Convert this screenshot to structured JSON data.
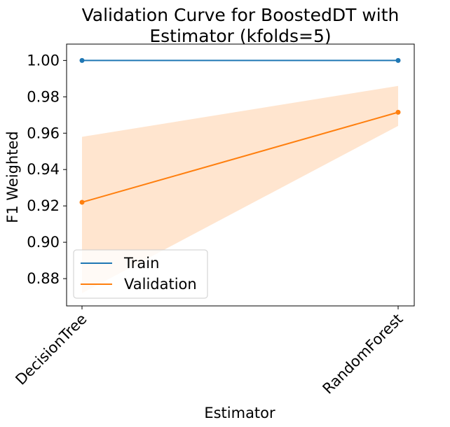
{
  "chart_data": {
    "type": "line",
    "title": [
      "Validation Curve for BoostedDT with",
      "Estimator (kfolds=5)"
    ],
    "xlabel": "Estimator",
    "ylabel": "F1 Weighted",
    "categories": [
      "DecisionTree",
      "RandomForest"
    ],
    "ylim": [
      0.865,
      1.009
    ],
    "yticks": [
      0.88,
      0.9,
      0.92,
      0.94,
      0.96,
      0.98,
      1.0
    ],
    "ytick_labels": [
      "0.88",
      "0.90",
      "0.92",
      "0.94",
      "0.96",
      "0.98",
      "1.00"
    ],
    "grid": false,
    "legend_position": "lower-left",
    "series": [
      {
        "name": "Train",
        "color": "#1f77b4",
        "values": [
          1.0,
          1.0
        ],
        "band_lower": [
          1.0,
          1.0
        ],
        "band_upper": [
          1.0,
          1.0
        ]
      },
      {
        "name": "Validation",
        "color": "#ff7f0e",
        "values": [
          0.922,
          0.9715
        ],
        "band_lower": [
          0.872,
          0.964
        ],
        "band_upper": [
          0.958,
          0.986
        ]
      }
    ]
  }
}
